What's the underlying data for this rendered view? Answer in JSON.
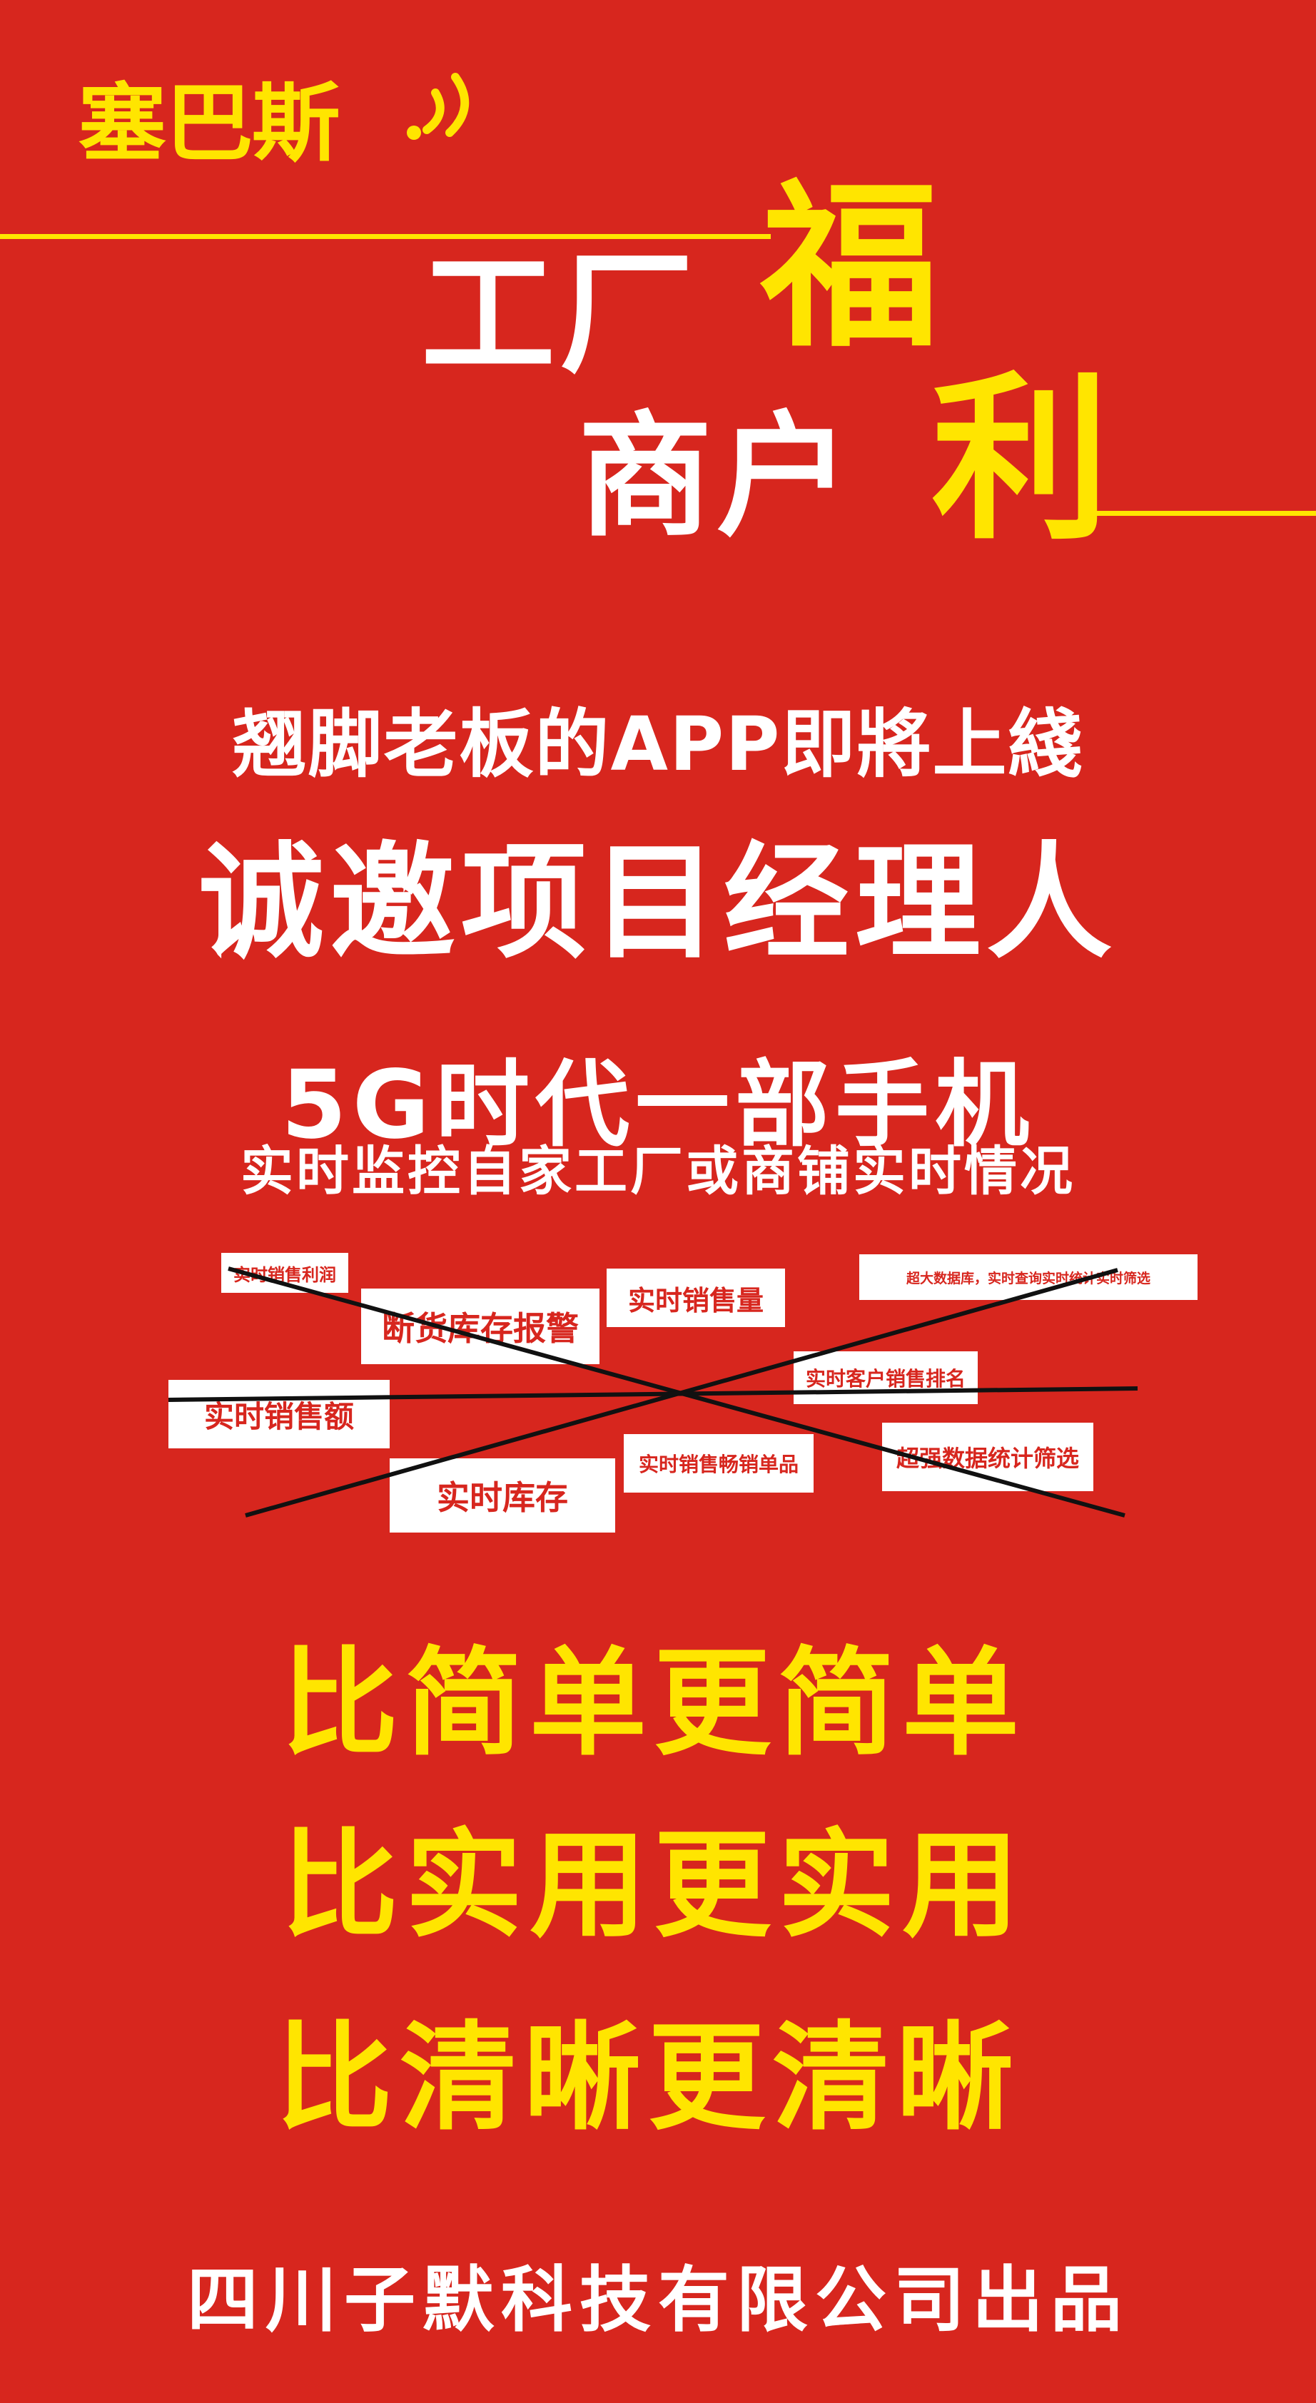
{
  "logo": {
    "brand": "塞巴斯",
    "icon": "wifi-signal-icon"
  },
  "colors": {
    "background": "#d7261e",
    "accent": "#ffe500",
    "text": "#ffffff",
    "tag_text": "#d7261e",
    "cross": "#111111"
  },
  "headline": {
    "factory": "工厂",
    "fu": "福",
    "merchant": "商户",
    "li": "利"
  },
  "intro": {
    "app_line": "翘脚老板的APP即將上綫",
    "invite": "诚邀项目经理人",
    "fiveg": "5G时代一部手机",
    "monitor": "实时监控自家工厂或商铺实时情况"
  },
  "tags": [
    {
      "label": "实时销售利润"
    },
    {
      "label": "断货库存报警"
    },
    {
      "label": "实时销售量"
    },
    {
      "label": "超大数据库，实时查询实时统计实时筛选"
    },
    {
      "label": "实时客户销售排名"
    },
    {
      "label": "实时销售额"
    },
    {
      "label": "超强数据统计筛选"
    },
    {
      "label": "实时销售畅销单品"
    },
    {
      "label": "实时库存"
    }
  ],
  "slogans": [
    "比简单更简单",
    "比实用更实用",
    "比清晰更清晰"
  ],
  "footer": {
    "company": "四川子默科技有限公司出品"
  }
}
